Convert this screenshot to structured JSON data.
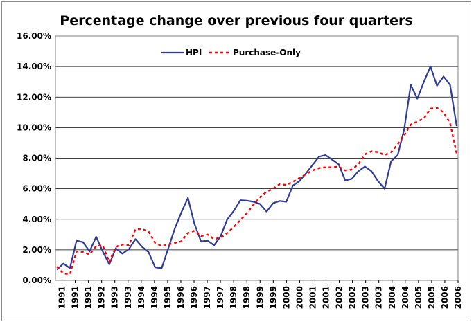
{
  "chart_data": {
    "type": "line",
    "title": "Percentage change over previous four quarters",
    "xlabel": "",
    "ylabel": "",
    "ylim": [
      0,
      16
    ],
    "y_tick_labels": [
      "0.00%",
      "2.00%",
      "4.00%",
      "6.00%",
      "8.00%",
      "10.00%",
      "12.00%",
      "14.00%",
      "16.00%"
    ],
    "x_tick_labels": [
      "1991",
      "1991",
      "1991",
      "1992",
      "1993",
      "1993",
      "1994",
      "1994",
      "1995",
      "1996",
      "1996",
      "1997",
      "1997",
      "1998",
      "1998",
      "1999",
      "1999",
      "2000",
      "2000",
      "2001",
      "2001",
      "2002",
      "2002",
      "2003",
      "2003",
      "2004",
      "2004",
      "2005",
      "2005",
      "2006",
      "2006"
    ],
    "grid": "horizontal",
    "legend_position": "top-center",
    "series": [
      {
        "name": "HPI",
        "color": "#2e3c96",
        "style": "solid",
        "values": [
          0.7,
          1.1,
          0.8,
          2.6,
          2.5,
          1.9,
          2.85,
          1.9,
          1.05,
          2.1,
          1.75,
          2.05,
          2.7,
          2.2,
          1.85,
          0.85,
          0.8,
          2.1,
          3.4,
          4.45,
          5.4,
          3.7,
          2.55,
          2.6,
          2.3,
          2.9,
          4.0,
          4.55,
          5.25,
          5.22,
          5.15,
          5.0,
          4.5,
          5.05,
          5.2,
          5.15,
          6.2,
          6.5,
          7.0,
          7.55,
          8.1,
          8.2,
          7.9,
          7.6,
          6.55,
          6.65,
          7.15,
          7.45,
          7.15,
          6.5,
          6.0,
          7.8,
          8.2,
          9.9,
          12.8,
          11.9,
          13.0,
          14.0,
          12.75,
          13.35,
          12.8,
          10.1
        ]
      },
      {
        "name": "Purchase-Only",
        "color": "#ff0000",
        "style": "dashed",
        "values": [
          0.9,
          0.45,
          0.4,
          1.9,
          1.85,
          1.7,
          2.25,
          2.3,
          1.2,
          2.2,
          2.35,
          2.3,
          3.35,
          3.35,
          3.2,
          2.45,
          2.25,
          2.35,
          2.45,
          2.55,
          3.1,
          3.25,
          2.9,
          3.0,
          2.7,
          2.8,
          3.1,
          3.5,
          3.95,
          4.4,
          4.95,
          5.45,
          5.8,
          6.0,
          6.3,
          6.25,
          6.45,
          6.7,
          6.95,
          7.2,
          7.35,
          7.4,
          7.4,
          7.45,
          7.2,
          7.25,
          7.6,
          8.25,
          8.45,
          8.4,
          8.2,
          8.4,
          8.9,
          9.5,
          10.2,
          10.4,
          10.6,
          11.25,
          11.3,
          11.0,
          10.3,
          8.3
        ]
      }
    ]
  }
}
